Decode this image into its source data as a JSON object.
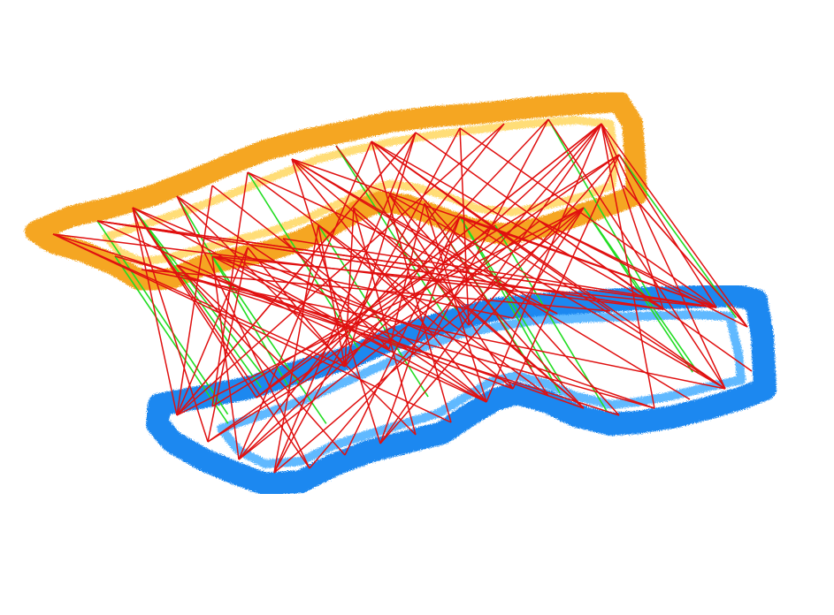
{
  "colors": {
    "background": "#ffffff",
    "source_cloud": "#f5a623",
    "source_cloud_highlight": "#ffd24a",
    "target_cloud": "#1e88f0",
    "target_cloud_highlight": "#3aa8ff",
    "inlier_correspondence": "#22dd22",
    "outlier_correspondence": "#e01010"
  },
  "legend": {
    "inlier_count": 18,
    "outlier_count": 110
  }
}
